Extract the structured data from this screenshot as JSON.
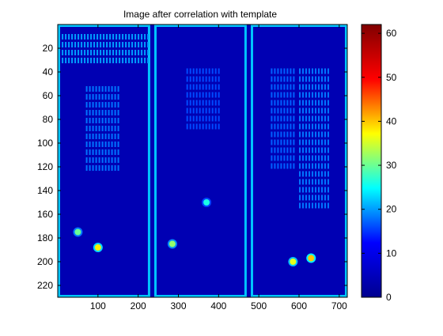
{
  "chart_data": {
    "type": "heatmap",
    "title": "Image after correlation with template",
    "xlabel": "",
    "ylabel": "",
    "xlim": [
      0,
      720
    ],
    "ylim": [
      230,
      0
    ],
    "x_ticks": [
      100,
      200,
      300,
      400,
      500,
      600,
      700
    ],
    "y_ticks": [
      20,
      40,
      60,
      80,
      100,
      120,
      140,
      160,
      180,
      200,
      220
    ],
    "colorbar": {
      "range": [
        0,
        62
      ],
      "ticks": [
        0,
        10,
        20,
        30,
        40,
        50,
        60
      ],
      "colormap": "jet",
      "colors": [
        "#00008f",
        "#0000ff",
        "#00ffff",
        "#ffff00",
        "#ff0000",
        "#800000"
      ]
    },
    "background_value": 4,
    "panels": [
      {
        "x": [
          0,
          230
        ],
        "y": [
          0,
          230
        ],
        "border_value": 22
      },
      {
        "x": [
          240,
          470
        ],
        "y": [
          0,
          230
        ],
        "border_value": 22
      },
      {
        "x": [
          480,
          720
        ],
        "y": [
          0,
          230
        ],
        "border_value": 22
      }
    ],
    "text_blocks": [
      {
        "x": [
          10,
          230
        ],
        "y": [
          8,
          32
        ],
        "value": 20
      },
      {
        "x": [
          70,
          160
        ],
        "y": [
          52,
          125
        ],
        "value": 18
      },
      {
        "x": [
          320,
          405
        ],
        "y": [
          37,
          90
        ],
        "value": 16
      },
      {
        "x": [
          530,
          590
        ],
        "y": [
          37,
          120
        ],
        "value": 17
      },
      {
        "x": [
          600,
          680
        ],
        "y": [
          37,
          155
        ],
        "value": 18
      }
    ],
    "hot_spots": [
      {
        "x": 50,
        "y": 175,
        "value": 30
      },
      {
        "x": 100,
        "y": 188,
        "value": 38
      },
      {
        "x": 285,
        "y": 185,
        "value": 32
      },
      {
        "x": 370,
        "y": 150,
        "value": 26
      },
      {
        "x": 585,
        "y": 200,
        "value": 36
      },
      {
        "x": 630,
        "y": 197,
        "value": 40
      }
    ]
  }
}
